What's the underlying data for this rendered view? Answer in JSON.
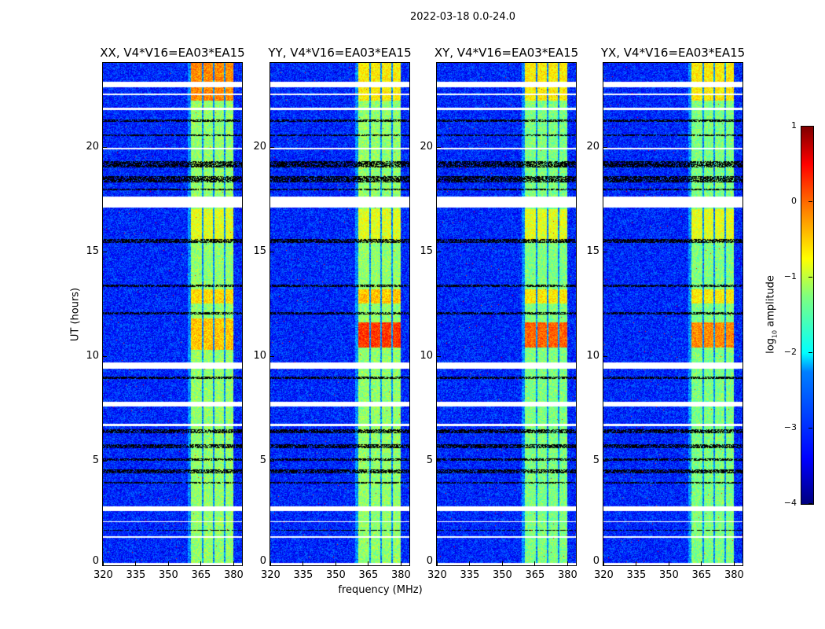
{
  "chart_data": {
    "type": "heatmap",
    "title": "2022-03-18 0.0-24.0",
    "xlabel": "frequency (MHz)",
    "ylabel": "UT (hours)",
    "xlim": [
      320,
      384
    ],
    "ylim": [
      0,
      24
    ],
    "xticks": [
      320,
      335,
      350,
      365,
      380
    ],
    "yticks": [
      0,
      5,
      10,
      15,
      20
    ],
    "colorbar": {
      "label_prefix": "log",
      "label_sub": "10",
      "label_suffix": " amplitude",
      "range": [
        -4,
        1
      ],
      "ticks": [
        1,
        0,
        -1,
        -2,
        -3,
        -4
      ],
      "tick_labels": [
        "1",
        "0",
        "−1",
        "−2",
        "−3",
        "−4"
      ],
      "colormap": "jet"
    },
    "background_log_amp": -3.2,
    "band_channels_mhz": [
      [
        360.5,
        365.5
      ],
      [
        366.2,
        370.8
      ],
      [
        371.5,
        375.8
      ],
      [
        376.5,
        380
      ]
    ],
    "flagged_hours": [
      [
        22.85,
        23.1
      ],
      [
        22.45,
        22.55
      ],
      [
        21.75,
        21.85
      ],
      [
        19.85,
        19.95
      ],
      [
        17.1,
        17.6
      ],
      [
        9.4,
        9.7
      ],
      [
        7.6,
        7.8
      ],
      [
        6.65,
        6.75
      ],
      [
        2.6,
        2.8
      ],
      [
        2.05,
        2.12
      ],
      [
        1.3,
        1.38
      ],
      [
        0.0,
        0.12
      ]
    ],
    "dark_hours": [
      [
        21.2,
        21.3
      ],
      [
        20.5,
        20.6
      ],
      [
        19.0,
        19.3
      ],
      [
        18.3,
        18.6
      ],
      [
        17.9,
        18.0
      ],
      [
        15.4,
        15.6
      ],
      [
        13.3,
        13.4
      ],
      [
        12.0,
        12.1
      ],
      [
        8.9,
        9.0
      ],
      [
        6.3,
        6.5
      ],
      [
        5.6,
        5.8
      ],
      [
        5.0,
        5.1
      ],
      [
        4.4,
        4.6
      ],
      [
        3.9,
        4.0
      ],
      [
        1.65,
        1.7
      ]
    ],
    "panels": [
      {
        "title": "XX, V4*V16=EA03*EA15",
        "band_log_amp": -1.4,
        "bright_hours": [
          [
            22.2,
            24,
            -0.3
          ],
          [
            10.3,
            11.8,
            -0.6
          ],
          [
            12.5,
            13.2,
            -0.7
          ],
          [
            15.5,
            17,
            -1.0
          ]
        ]
      },
      {
        "title": "YY, V4*V16=EA03*EA15",
        "band_log_amp": -1.4,
        "bright_hours": [
          [
            22.2,
            24,
            -0.8
          ],
          [
            10.4,
            11.6,
            0.1
          ],
          [
            12.5,
            13.2,
            -0.6
          ],
          [
            15.5,
            17,
            -1.0
          ]
        ]
      },
      {
        "title": "XY, V4*V16=EA03*EA15",
        "band_log_amp": -1.5,
        "bright_hours": [
          [
            22.2,
            24,
            -0.8
          ],
          [
            10.4,
            11.6,
            -0.1
          ],
          [
            12.5,
            13.2,
            -0.8
          ],
          [
            15.5,
            17,
            -1.0
          ]
        ]
      },
      {
        "title": "YX, V4*V16=EA03*EA15",
        "band_log_amp": -1.5,
        "bright_hours": [
          [
            22.2,
            24,
            -0.8
          ],
          [
            10.4,
            11.6,
            -0.3
          ],
          [
            12.5,
            13.2,
            -0.8
          ],
          [
            15.5,
            17,
            -1.0
          ]
        ]
      }
    ]
  }
}
